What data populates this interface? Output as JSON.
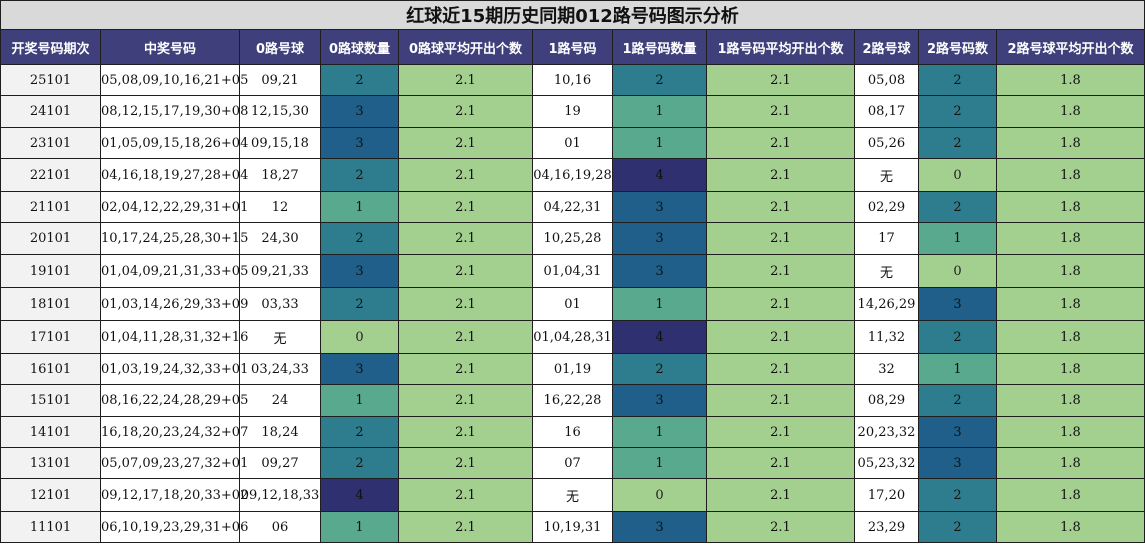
{
  "chart_data": {
    "type": "table",
    "title": "红球近15期历史同期012路号码图示分析",
    "columns": [
      "开奖号码期次",
      "中奖号码",
      "0路号球",
      "0路球数量",
      "0路球平均开出个数",
      "1路号码",
      "1路号码数量",
      "1路号码平均开出个数",
      "2路号球",
      "2路号码数",
      "2路号球平均开出个数"
    ],
    "rows": [
      {
        "period": "25101",
        "numbers": "05,08,09,10,16,21+05",
        "r0": "09,21",
        "c0": 2,
        "a0": "2.1",
        "r1": "10,16",
        "c1": 2,
        "a1": "2.1",
        "r2": "05,08",
        "c2": 2,
        "a2": "1.8"
      },
      {
        "period": "24101",
        "numbers": "08,12,15,17,19,30+08",
        "r0": "12,15,30",
        "c0": 3,
        "a0": "2.1",
        "r1": "19",
        "c1": 1,
        "a1": "2.1",
        "r2": "08,17",
        "c2": 2,
        "a2": "1.8"
      },
      {
        "period": "23101",
        "numbers": "01,05,09,15,18,26+04",
        "r0": "09,15,18",
        "c0": 3,
        "a0": "2.1",
        "r1": "01",
        "c1": 1,
        "a1": "2.1",
        "r2": "05,26",
        "c2": 2,
        "a2": "1.8"
      },
      {
        "period": "22101",
        "numbers": "04,16,18,19,27,28+04",
        "r0": "18,27",
        "c0": 2,
        "a0": "2.1",
        "r1": "04,16,19,28",
        "c1": 4,
        "a1": "2.1",
        "r2": "无",
        "c2": 0,
        "a2": "1.8"
      },
      {
        "period": "21101",
        "numbers": "02,04,12,22,29,31+01",
        "r0": "12",
        "c0": 1,
        "a0": "2.1",
        "r1": "04,22,31",
        "c1": 3,
        "a1": "2.1",
        "r2": "02,29",
        "c2": 2,
        "a2": "1.8"
      },
      {
        "period": "20101",
        "numbers": "10,17,24,25,28,30+15",
        "r0": "24,30",
        "c0": 2,
        "a0": "2.1",
        "r1": "10,25,28",
        "c1": 3,
        "a1": "2.1",
        "r2": "17",
        "c2": 1,
        "a2": "1.8"
      },
      {
        "period": "19101",
        "numbers": "01,04,09,21,31,33+05",
        "r0": "09,21,33",
        "c0": 3,
        "a0": "2.1",
        "r1": "01,04,31",
        "c1": 3,
        "a1": "2.1",
        "r2": "无",
        "c2": 0,
        "a2": "1.8"
      },
      {
        "period": "18101",
        "numbers": "01,03,14,26,29,33+09",
        "r0": "03,33",
        "c0": 2,
        "a0": "2.1",
        "r1": "01",
        "c1": 1,
        "a1": "2.1",
        "r2": "14,26,29",
        "c2": 3,
        "a2": "1.8"
      },
      {
        "period": "17101",
        "numbers": "01,04,11,28,31,32+16",
        "r0": "无",
        "c0": 0,
        "a0": "2.1",
        "r1": "01,04,28,31",
        "c1": 4,
        "a1": "2.1",
        "r2": "11,32",
        "c2": 2,
        "a2": "1.8"
      },
      {
        "period": "16101",
        "numbers": "01,03,19,24,32,33+01",
        "r0": "03,24,33",
        "c0": 3,
        "a0": "2.1",
        "r1": "01,19",
        "c1": 2,
        "a1": "2.1",
        "r2": "32",
        "c2": 1,
        "a2": "1.8"
      },
      {
        "period": "15101",
        "numbers": "08,16,22,24,28,29+05",
        "r0": "24",
        "c0": 1,
        "a0": "2.1",
        "r1": "16,22,28",
        "c1": 3,
        "a1": "2.1",
        "r2": "08,29",
        "c2": 2,
        "a2": "1.8"
      },
      {
        "period": "14101",
        "numbers": "16,18,20,23,24,32+07",
        "r0": "18,24",
        "c0": 2,
        "a0": "2.1",
        "r1": "16",
        "c1": 1,
        "a1": "2.1",
        "r2": "20,23,32",
        "c2": 3,
        "a2": "1.8"
      },
      {
        "period": "13101",
        "numbers": "05,07,09,23,27,32+01",
        "r0": "09,27",
        "c0": 2,
        "a0": "2.1",
        "r1": "07",
        "c1": 1,
        "a1": "2.1",
        "r2": "05,23,32",
        "c2": 3,
        "a2": "1.8"
      },
      {
        "period": "12101",
        "numbers": "09,12,17,18,20,33+02",
        "r0": "09,12,18,33",
        "c0": 4,
        "a0": "2.1",
        "r1": "无",
        "c1": 0,
        "a1": "2.1",
        "r2": "17,20",
        "c2": 2,
        "a2": "1.8"
      },
      {
        "period": "11101",
        "numbers": "06,10,19,23,29,31+06",
        "r0": "06",
        "c0": 1,
        "a0": "2.1",
        "r1": "10,19,31",
        "c1": 3,
        "a1": "2.1",
        "r2": "23,29",
        "c2": 2,
        "a2": "1.8"
      }
    ]
  },
  "colors": {
    "count_0": "#a3cf8f",
    "count_1": "#59a98e",
    "count_2": "#2d7d8e",
    "count_3": "#1f5f8a",
    "count_4": "#2e3070",
    "header_bg": "#3f3f7c",
    "title_bg": "#d9d9d9",
    "average_bg": "#a3cf8f"
  }
}
